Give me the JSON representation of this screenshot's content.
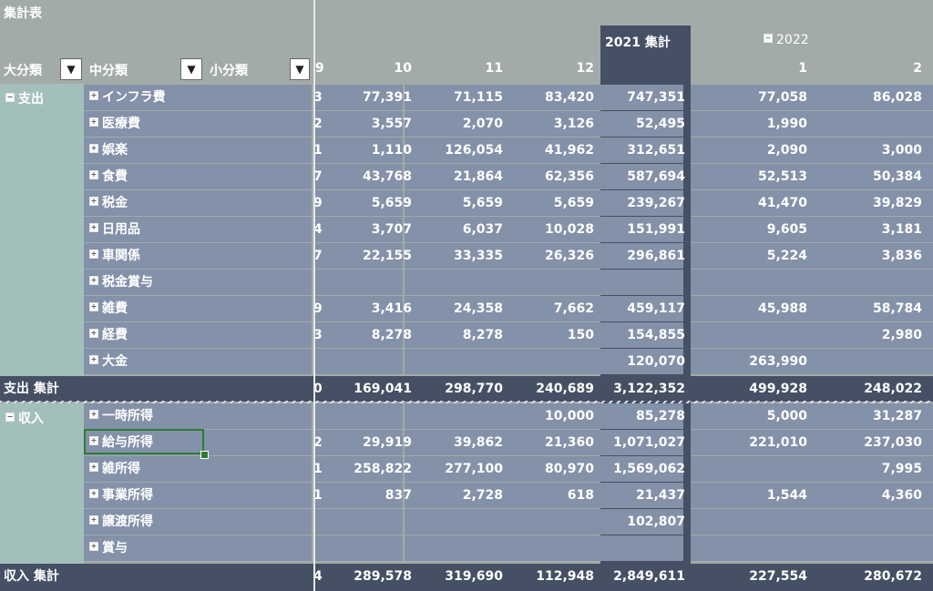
{
  "title": "集計表",
  "header": {
    "col_daibunrui": "大分類",
    "col_chubunrui": "中分類",
    "col_shobunrui": "小分類",
    "col_partial": "9",
    "col_10": "10",
    "col_11": "11",
    "col_12": "12",
    "total_2021": "2021 集計",
    "year_2022": "2022",
    "col_2022_1": "1",
    "col_2022_2": "2"
  },
  "groups": {
    "expense_label": "支出",
    "expense_total_label": "支出 集計",
    "income_label": "収入",
    "income_total_label": "収入 集計"
  },
  "expense_rows": [
    {
      "label": "インフラ費",
      "p": "3",
      "v10": "77,391",
      "v11": "71,115",
      "v12": "83,420",
      "t21": "747,351",
      "v1": "77,058",
      "v2": "86,028"
    },
    {
      "label": "医療費",
      "p": "2",
      "v10": "3,557",
      "v11": "2,070",
      "v12": "3,126",
      "t21": "52,495",
      "v1": "1,990",
      "v2": ""
    },
    {
      "label": "娯楽",
      "p": "1",
      "v10": "1,110",
      "v11": "126,054",
      "v12": "41,962",
      "t21": "312,651",
      "v1": "2,090",
      "v2": "3,000"
    },
    {
      "label": "食費",
      "p": "7",
      "v10": "43,768",
      "v11": "21,864",
      "v12": "62,356",
      "t21": "587,694",
      "v1": "52,513",
      "v2": "50,384"
    },
    {
      "label": "税金",
      "p": "9",
      "v10": "5,659",
      "v11": "5,659",
      "v12": "5,659",
      "t21": "239,267",
      "v1": "41,470",
      "v2": "39,829"
    },
    {
      "label": "日用品",
      "p": "4",
      "v10": "3,707",
      "v11": "6,037",
      "v12": "10,028",
      "t21": "151,991",
      "v1": "9,605",
      "v2": "3,181"
    },
    {
      "label": "車関係",
      "p": "7",
      "v10": "22,155",
      "v11": "33,335",
      "v12": "26,326",
      "t21": "296,861",
      "v1": "5,224",
      "v2": "3,836"
    },
    {
      "label": "税金賞与",
      "p": "",
      "v10": "",
      "v11": "",
      "v12": "",
      "t21": "",
      "v1": "",
      "v2": ""
    },
    {
      "label": "雑費",
      "p": "9",
      "v10": "3,416",
      "v11": "24,358",
      "v12": "7,662",
      "t21": "459,117",
      "v1": "45,988",
      "v2": "58,784"
    },
    {
      "label": "経費",
      "p": "3",
      "v10": "8,278",
      "v11": "8,278",
      "v12": "150",
      "t21": "154,855",
      "v1": "",
      "v2": "2,980"
    },
    {
      "label": "大金",
      "p": "",
      "v10": "",
      "v11": "",
      "v12": "",
      "t21": "120,070",
      "v1": "263,990",
      "v2": ""
    }
  ],
  "expense_total": {
    "p": "0",
    "v10": "169,041",
    "v11": "298,770",
    "v12": "240,689",
    "t21": "3,122,352",
    "v1": "499,928",
    "v2": "248,022"
  },
  "income_rows": [
    {
      "label": "一時所得",
      "p": "",
      "v10": "",
      "v11": "",
      "v12": "10,000",
      "t21": "85,278",
      "v1": "5,000",
      "v2": "31,287"
    },
    {
      "label": "給与所得",
      "p": "2",
      "v10": "29,919",
      "v11": "39,862",
      "v12": "21,360",
      "t21": "1,071,027",
      "v1": "221,010",
      "v2": "237,030"
    },
    {
      "label": "雑所得",
      "p": "1",
      "v10": "258,822",
      "v11": "277,100",
      "v12": "80,970",
      "t21": "1,569,062",
      "v1": "",
      "v2": "7,995"
    },
    {
      "label": "事業所得",
      "p": "1",
      "v10": "837",
      "v11": "2,728",
      "v12": "618",
      "t21": "21,437",
      "v1": "1,544",
      "v2": "4,360"
    },
    {
      "label": "譲渡所得",
      "p": "",
      "v10": "",
      "v11": "",
      "v12": "",
      "t21": "102,807",
      "v1": "",
      "v2": ""
    },
    {
      "label": "賞与",
      "p": "",
      "v10": "",
      "v11": "",
      "v12": "",
      "t21": "",
      "v1": "",
      "v2": ""
    }
  ],
  "income_total": {
    "p": "4",
    "v10": "289,578",
    "v11": "319,690",
    "v12": "112,948",
    "t21": "2,849,611",
    "v1": "227,554",
    "v2": "280,672"
  },
  "icons": {
    "expand": "plus-box-icon",
    "collapse": "minus-box-icon",
    "filter": "filter-icon",
    "dropdown": "chevron-down-icon"
  },
  "colors": {
    "header_bg": "#a3aba8",
    "row_bg": "#8391a9",
    "dark_bg": "#455064",
    "sidebar_bg": "#a3bfbc",
    "selection": "#2e7d32"
  }
}
